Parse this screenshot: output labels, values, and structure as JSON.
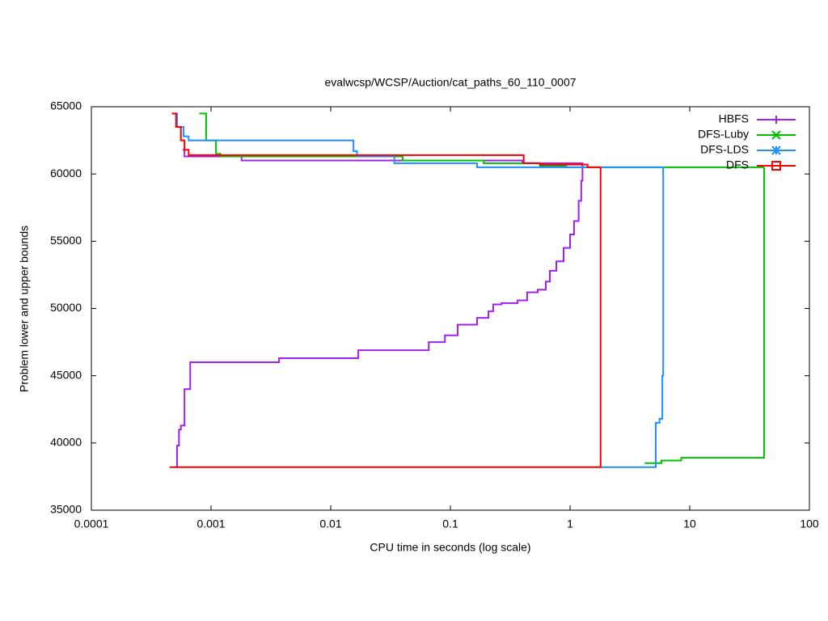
{
  "chart_data": {
    "type": "line",
    "steps": true,
    "log_x": true,
    "title": "evalwcsp/WCSP/Auction/cat_paths_60_110_0007",
    "x_label": "CPU time in seconds (log scale)",
    "y_label": "Problem lower and upper bounds",
    "xlim": [
      0.0001,
      100
    ],
    "xticks": [
      0.0001,
      0.001,
      0.01,
      0.1,
      1,
      10,
      100
    ],
    "ylim": [
      35000,
      65000
    ],
    "yticks": [
      35000,
      40000,
      45000,
      50000,
      55000,
      60000,
      65000
    ],
    "legend": "top-right",
    "series": [
      {
        "name": "HBFS",
        "color": "#a020f0",
        "marker": "plus",
        "x": [
          0.00058,
          0.0006,
          0.0018,
          0.4,
          1.27,
          null,
          0.00051,
          0.00052,
          0.00054,
          0.00056,
          0.0006,
          0.00067,
          0.0037,
          0.017,
          0.066,
          0.09,
          0.115,
          0.167,
          0.208,
          0.228,
          0.267,
          0.364,
          0.438,
          0.537,
          0.627,
          0.678,
          0.768,
          0.883,
          1.0,
          1.08,
          1.18,
          1.24,
          1.27
        ],
        "values": [
          61800,
          61300,
          61000,
          60800,
          60500,
          null,
          38200,
          39800,
          41000,
          41300,
          44000,
          46000,
          46300,
          46900,
          47500,
          48000,
          48800,
          49300,
          49800,
          50300,
          50400,
          50600,
          51200,
          51400,
          52000,
          52800,
          53500,
          54500,
          55500,
          56500,
          58000,
          59500,
          60500
        ]
      },
      {
        "name": "DFS-Luby",
        "color": "#00c000",
        "marker": "cross",
        "x": [
          0.0008,
          0.00091,
          0.0011,
          0.0012,
          0.04,
          0.19,
          0.56,
          0.93,
          41.8,
          null,
          4.2,
          5.8,
          8.5,
          41.8
        ],
        "values": [
          64500,
          62500,
          61500,
          61300,
          61000,
          60800,
          60600,
          60500,
          60500,
          null,
          38500,
          38700,
          38900,
          60500
        ]
      },
      {
        "name": "DFS-LDS",
        "color": "#1e8fff",
        "marker": "star",
        "x": [
          0.00049,
          0.00052,
          0.00059,
          0.00065,
          0.0155,
          0.0166,
          0.034,
          0.167,
          6.0,
          null,
          1.8,
          5.2,
          5.6,
          5.9,
          6.0
        ],
        "values": [
          64500,
          63500,
          62800,
          62500,
          61700,
          61300,
          60800,
          60500,
          60500,
          null,
          38200,
          41500,
          41800,
          45000,
          60500
        ]
      },
      {
        "name": "DFS",
        "color": "#ff0000",
        "marker": "square",
        "x": [
          0.00047,
          0.00051,
          0.00056,
          0.0006,
          0.00065,
          0.41,
          0.56,
          1.4,
          1.8,
          null,
          0.00045,
          1.8
        ],
        "values": [
          64500,
          63500,
          62500,
          61800,
          61400,
          60800,
          60700,
          60500,
          60500,
          null,
          38200,
          60500
        ]
      }
    ]
  }
}
